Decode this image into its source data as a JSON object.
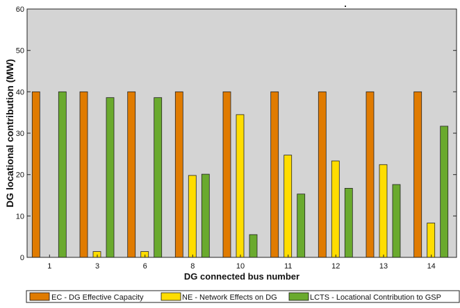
{
  "chart_data": {
    "type": "bar",
    "title": ".",
    "xlabel": "DG connected bus number",
    "ylabel": "DG locational contribution (MW)",
    "categories": [
      "1",
      "3",
      "6",
      "8",
      "10",
      "11",
      "12",
      "13",
      "14"
    ],
    "ylim": [
      0,
      60
    ],
    "yticks": [
      0,
      10,
      20,
      30,
      40,
      50,
      60
    ],
    "grid": false,
    "legend_position": "bottom",
    "plot_background": "#d4d4d4",
    "series": [
      {
        "name": "EC - DG Effective Capacity",
        "color": "#e07b00",
        "values": [
          40,
          40,
          40,
          40,
          40,
          40,
          40,
          40,
          40
        ]
      },
      {
        "name": "NE - Network Effects on DG",
        "color": "#ffdd00",
        "values": [
          0,
          1.4,
          1.4,
          19.8,
          34.5,
          24.7,
          23.3,
          22.4,
          8.3
        ]
      },
      {
        "name": "LCTS - Locational Contribution to GSP",
        "color": "#6aaa2e",
        "values": [
          40,
          38.6,
          38.6,
          20.1,
          5.5,
          15.3,
          16.7,
          17.6,
          31.7
        ]
      }
    ]
  }
}
